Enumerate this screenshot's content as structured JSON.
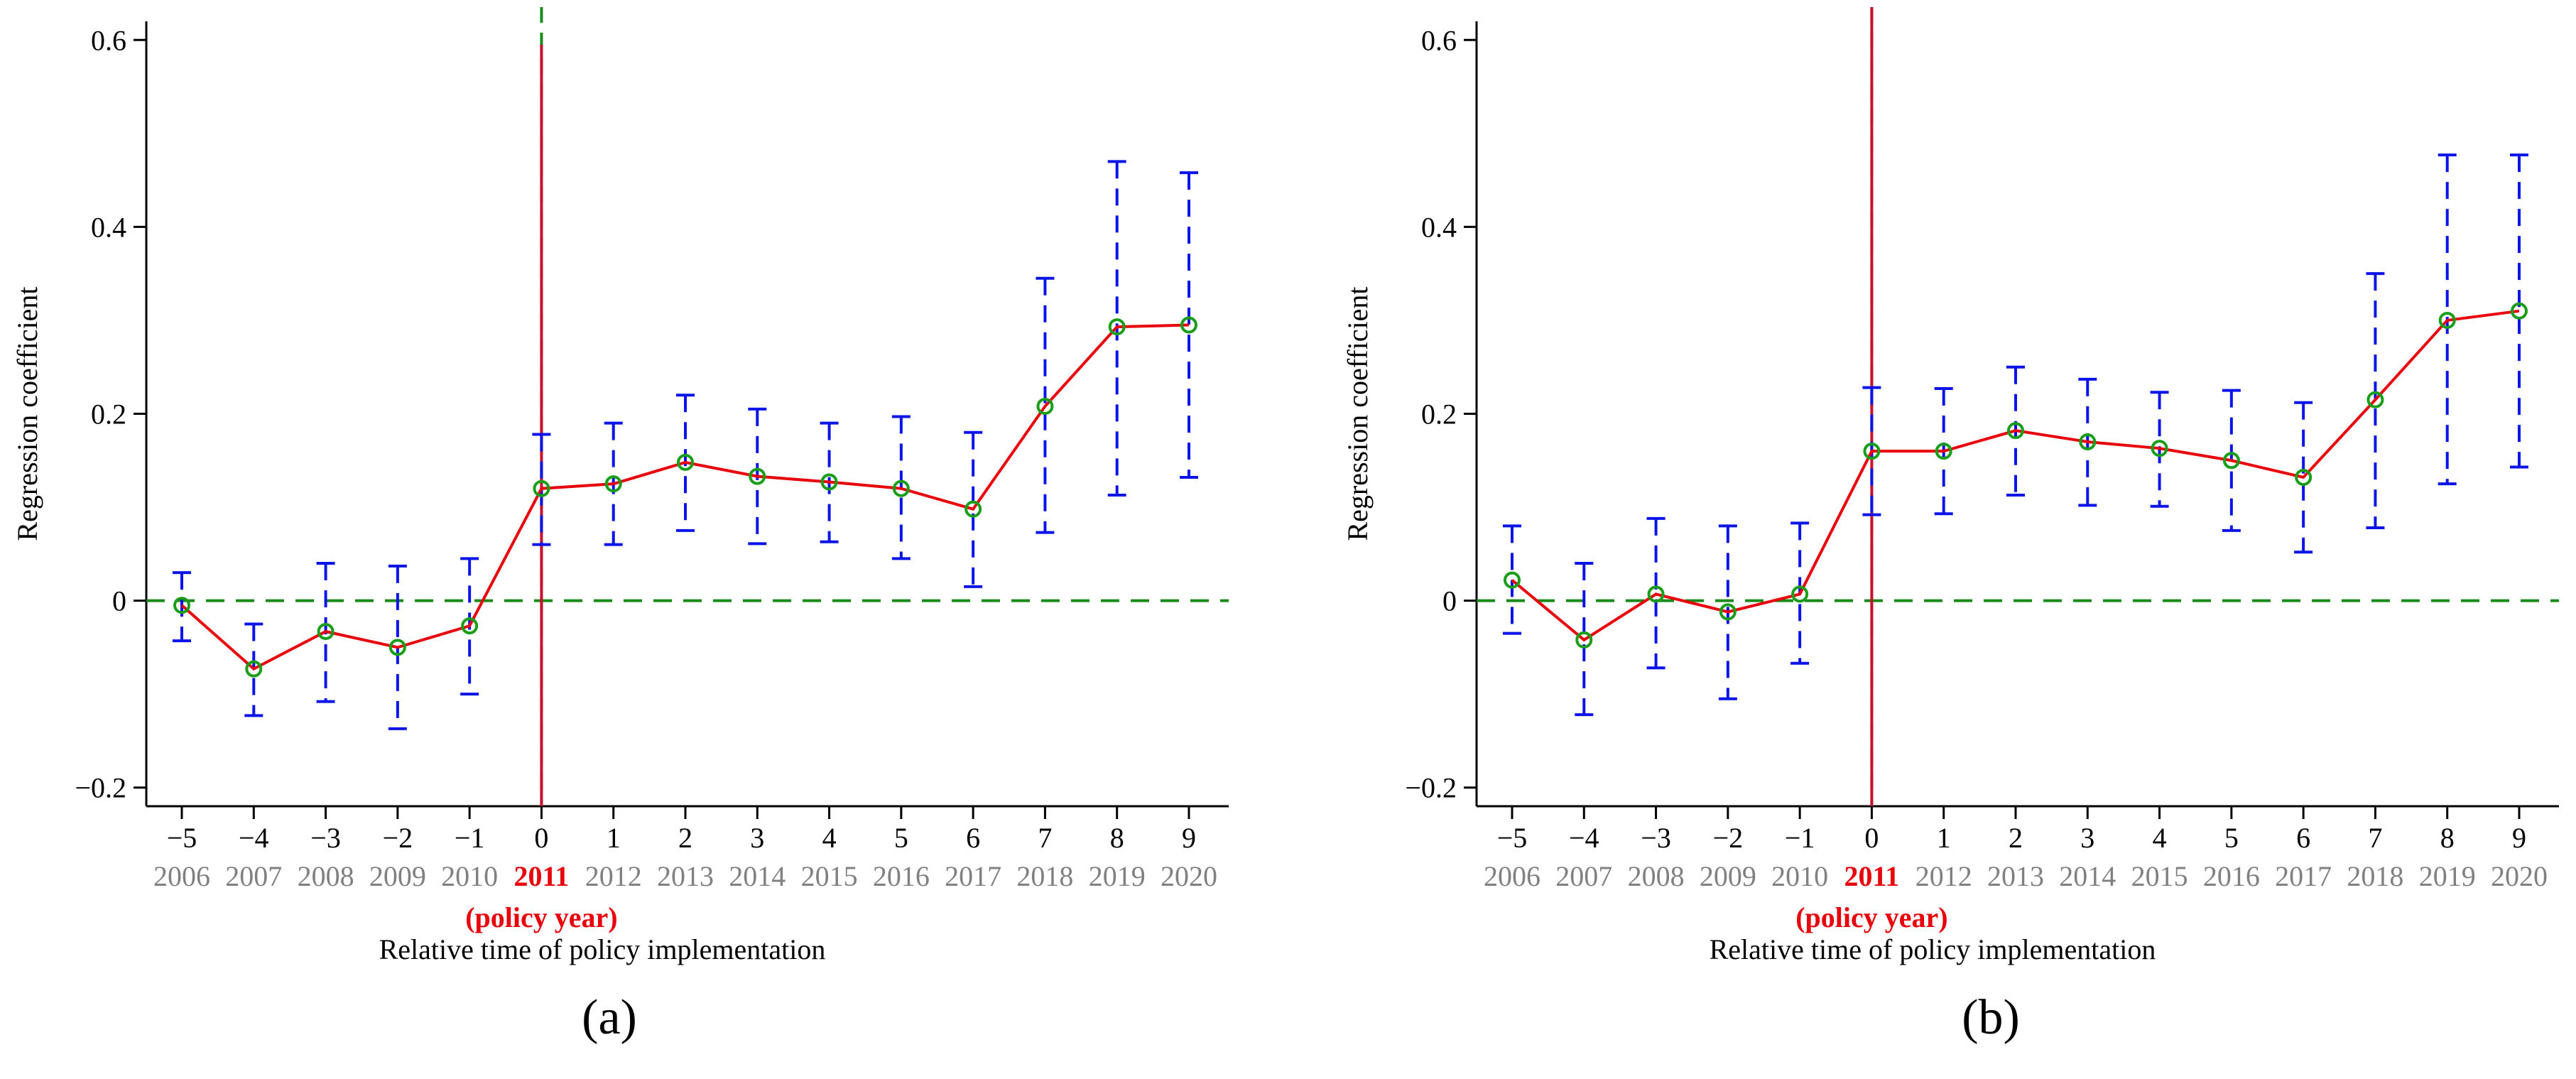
{
  "chart_data": [
    {
      "type": "line",
      "panel_label": "(a)",
      "ylabel": "Regression coefficient",
      "xlabel": "Relative time of policy implementation",
      "policy_note": "(policy year)",
      "ylim": [
        -0.22,
        0.62
      ],
      "y_ticks": [
        -0.2,
        0,
        0.2,
        0.4,
        0.6
      ],
      "y_tick_labels": [
        "−0.2",
        "0",
        "0.2",
        "0.4",
        "0.6"
      ],
      "x_tick_labels": [
        "−5",
        "−4",
        "−3",
        "−2",
        "−1",
        "0",
        "1",
        "2",
        "3",
        "4",
        "5",
        "6",
        "7",
        "8",
        "9"
      ],
      "years": [
        "2006",
        "2007",
        "2008",
        "2009",
        "2010",
        "2011",
        "2012",
        "2013",
        "2014",
        "2015",
        "2016",
        "2017",
        "2018",
        "2019",
        "2020"
      ],
      "policy_index": 5,
      "zero_line": 0,
      "x": [
        -5,
        -4,
        -3,
        -2,
        -1,
        0,
        1,
        2,
        3,
        4,
        5,
        6,
        7,
        8,
        9
      ],
      "coef": [
        -0.005,
        -0.073,
        -0.033,
        -0.05,
        -0.027,
        0.12,
        0.125,
        0.148,
        0.133,
        0.127,
        0.12,
        0.098,
        0.208,
        0.293,
        0.295
      ],
      "lower": [
        -0.043,
        -0.123,
        -0.108,
        -0.137,
        -0.1,
        0.06,
        0.06,
        0.075,
        0.061,
        0.063,
        0.045,
        0.015,
        0.073,
        0.113,
        0.132
      ],
      "upper": [
        0.03,
        -0.025,
        0.04,
        0.037,
        0.045,
        0.178,
        0.19,
        0.22,
        0.205,
        0.19,
        0.197,
        0.18,
        0.345,
        0.47,
        0.458
      ],
      "colors": {
        "line": "#e8000b",
        "marker": "#1a9e1a",
        "ci": "#0a14e8",
        "zero_line": "#1a8a1a",
        "vline": "#c8102e",
        "vline_dash": "#1a8a1a"
      }
    },
    {
      "type": "line",
      "panel_label": "(b)",
      "ylabel": "Regression coefficient",
      "xlabel": "Relative time of policy implementation",
      "policy_note": "(policy year)",
      "ylim": [
        -0.22,
        0.62
      ],
      "y_ticks": [
        -0.2,
        0,
        0.2,
        0.4,
        0.6
      ],
      "y_tick_labels": [
        "−0.2",
        "0",
        "0.2",
        "0.4",
        "0.6"
      ],
      "x_tick_labels": [
        "−5",
        "−4",
        "−3",
        "−2",
        "−1",
        "0",
        "1",
        "2",
        "3",
        "4",
        "5",
        "6",
        "7",
        "8",
        "9"
      ],
      "years": [
        "2006",
        "2007",
        "2008",
        "2009",
        "2010",
        "2011",
        "2012",
        "2013",
        "2014",
        "2015",
        "2016",
        "2017",
        "2018",
        "2019",
        "2020"
      ],
      "policy_index": 5,
      "zero_line": 0,
      "x": [
        -5,
        -4,
        -3,
        -2,
        -1,
        0,
        1,
        2,
        3,
        4,
        5,
        6,
        7,
        8,
        9
      ],
      "coef": [
        0.022,
        -0.042,
        0.007,
        -0.012,
        0.007,
        0.16,
        0.16,
        0.182,
        0.17,
        0.163,
        0.15,
        0.132,
        0.215,
        0.3,
        0.31
      ],
      "lower": [
        -0.035,
        -0.122,
        -0.072,
        -0.105,
        -0.067,
        0.092,
        0.093,
        0.113,
        0.102,
        0.101,
        0.075,
        0.052,
        0.078,
        0.125,
        0.143
      ],
      "upper": [
        0.08,
        0.04,
        0.088,
        0.08,
        0.083,
        0.228,
        0.227,
        0.25,
        0.237,
        0.223,
        0.225,
        0.212,
        0.35,
        0.477,
        0.477
      ],
      "colors": {
        "line": "#e8000b",
        "marker": "#1a9e1a",
        "ci": "#0a14e8",
        "zero_line": "#1a8a1a",
        "vline": "#c8102e",
        "vline_dash": "#1a8a1a"
      }
    }
  ]
}
